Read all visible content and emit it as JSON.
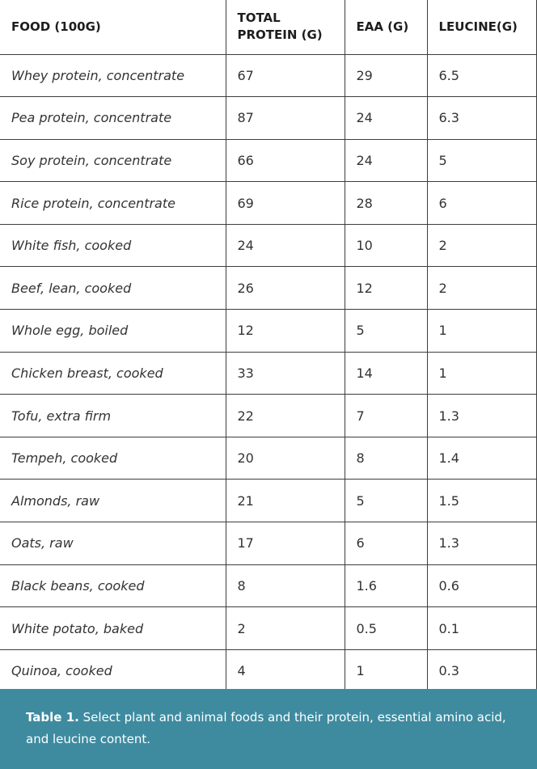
{
  "table": {
    "headers": [
      "FOOD (100G)",
      "TOTAL PROTEIN (G)",
      "EAA (G)",
      "LEUCINE(G)"
    ],
    "rows": [
      [
        "Whey protein, concentrate",
        "67",
        "29",
        "6.5"
      ],
      [
        "Pea protein, concentrate",
        "87",
        "24",
        "6.3"
      ],
      [
        "Soy protein, concentrate",
        "66",
        "24",
        "5"
      ],
      [
        "Rice protein, concentrate",
        "69",
        "28",
        "6"
      ],
      [
        "White fish, cooked",
        "24",
        "10",
        "2"
      ],
      [
        "Beef, lean, cooked",
        "26",
        "12",
        "2"
      ],
      [
        "Whole egg, boiled",
        "12",
        "5",
        "1"
      ],
      [
        "Chicken breast, cooked",
        "33",
        "14",
        "1"
      ],
      [
        "Tofu, extra firm",
        "22",
        "7",
        "1.3"
      ],
      [
        "Tempeh, cooked",
        "20",
        "8",
        "1.4"
      ],
      [
        "Almonds, raw",
        "21",
        "5",
        "1.5"
      ],
      [
        "Oats, raw",
        "17",
        "6",
        "1.3"
      ],
      [
        "Black beans, cooked",
        "8",
        "1.6",
        "0.6"
      ],
      [
        "White potato, baked",
        "2",
        "0.5",
        "0.1"
      ],
      [
        "Quinoa, cooked",
        "4",
        "1",
        "0.3"
      ]
    ]
  },
  "caption": {
    "label": "Table 1.",
    "text": " Select plant and animal foods and their protein, essential amino acid, and leucine content."
  },
  "colors": {
    "caption_background": "#3e8ba0",
    "caption_text": "#ffffff",
    "grid_lines": "#3d3d3d"
  }
}
